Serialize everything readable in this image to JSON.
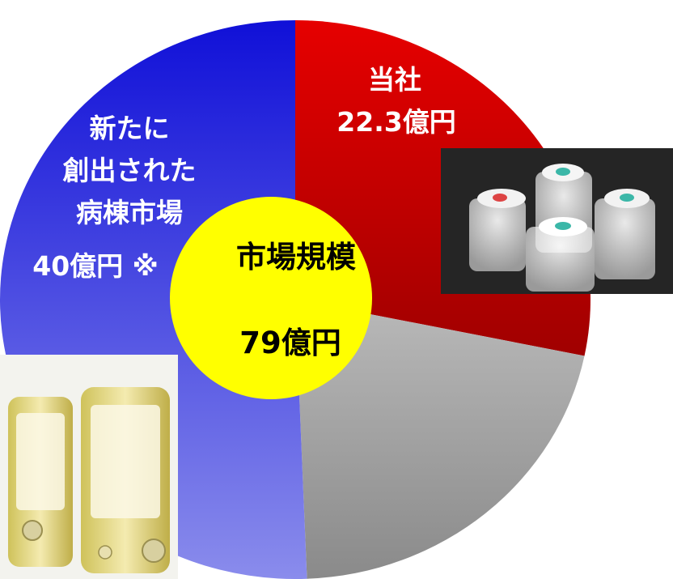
{
  "chart_data": {
    "type": "pie",
    "center_label": {
      "line1": "市場規模",
      "line2": "79億円"
    },
    "slices": [
      {
        "label_lines": [
          "当社",
          "22.3億円"
        ],
        "value": 22.3,
        "color_top": "#e60000",
        "color_bottom": "#a00000"
      },
      {
        "label_lines": [],
        "value": 16.7,
        "color_top": "#b9b9b9",
        "color_bottom": "#8a8a8a"
      },
      {
        "label_lines": [
          "新たに",
          "創出された",
          "病棟市場",
          "40億円 ※"
        ],
        "value": 40,
        "color_top": "#1010d8",
        "color_bottom": "#8a8cec"
      }
    ]
  },
  "colors": {
    "center_fill": "#ffff00",
    "label_text": "#ffffff",
    "center_text": "#000000"
  }
}
